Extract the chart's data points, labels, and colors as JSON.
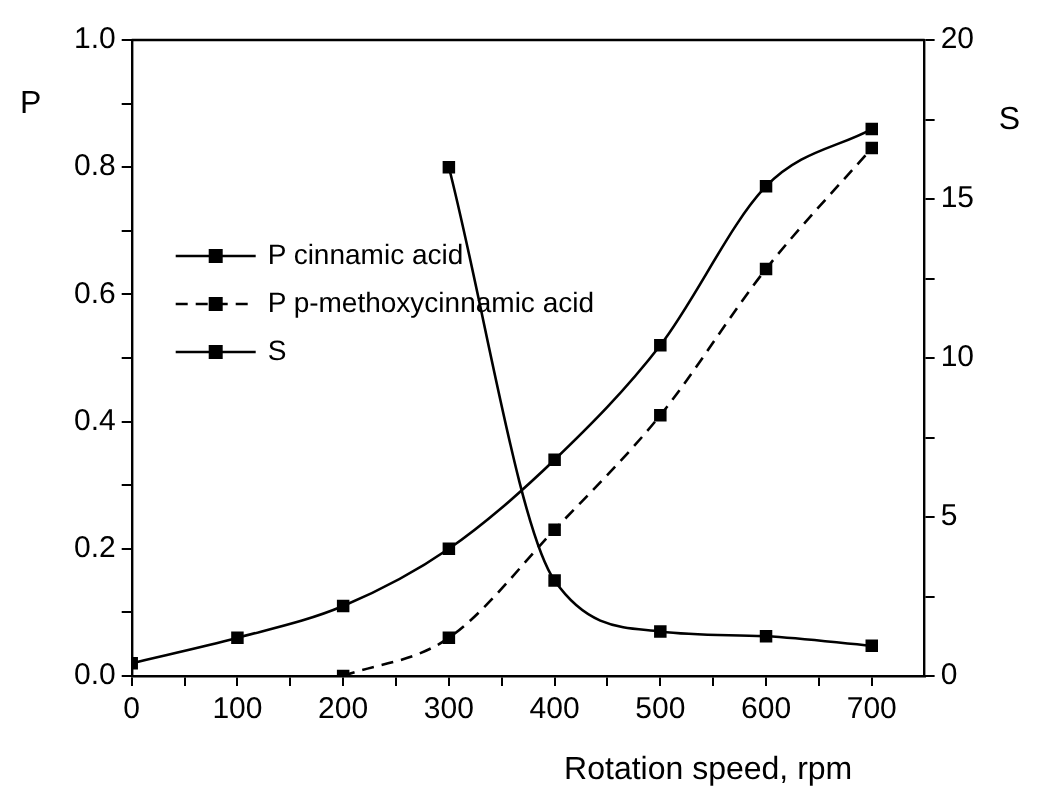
{
  "chart_data": {
    "type": "line",
    "xlabel": "Rotation speed, rpm",
    "ylabel": "P",
    "y2label": "S",
    "xlim": [
      0,
      750
    ],
    "xticks": [
      0,
      {
        "value": 50,
        "label": null
      },
      100,
      {
        "value": 150,
        "label": null
      },
      200,
      {
        "value": 250,
        "label": null
      },
      300,
      {
        "value": 350,
        "label": null
      },
      400,
      {
        "value": 450,
        "label": null
      },
      500,
      {
        "value": 550,
        "label": null
      },
      600,
      {
        "value": 650,
        "label": null
      },
      700
    ],
    "ylim": [
      0,
      1
    ],
    "yticks": [
      {
        "value": 0,
        "label": "0.0"
      },
      {
        "value": 0.1,
        "label": null
      },
      0.2,
      {
        "value": 0.3,
        "label": null
      },
      0.4,
      {
        "value": 0.5,
        "label": null
      },
      0.6,
      {
        "value": 0.7,
        "label": null
      },
      0.8,
      {
        "value": 0.9,
        "label": null
      },
      {
        "value": 1,
        "label": "1.0"
      }
    ],
    "y2lim": [
      0,
      20
    ],
    "y2ticks": [
      0,
      {
        "value": 2.5,
        "label": null
      },
      5,
      {
        "value": 7.5,
        "label": null
      },
      10,
      {
        "value": 12.5,
        "label": null
      },
      15,
      {
        "value": 17.5,
        "label": null
      },
      20
    ],
    "grid": false,
    "legend": "left",
    "marker": "square",
    "series": [
      {
        "name": "P cinnamic acid",
        "color": "#000000",
        "x": [
          0,
          100,
          200,
          300,
          400,
          500,
          600,
          700
        ],
        "values": [
          0.02,
          0.06,
          0.11,
          0.2,
          0.34,
          0.52,
          0.77,
          0.86
        ],
        "line_style": "solid"
      },
      {
        "name": "P p-methoxycinnamic acid",
        "color": "#000000",
        "x": [
          200,
          300,
          400,
          500,
          600,
          700
        ],
        "values": [
          0,
          0.06,
          0.23,
          0.41,
          0.64,
          0.83
        ],
        "line_style": "dashed"
      },
      {
        "name": "S",
        "color": "#000000",
        "axis": "y2",
        "x": [
          300,
          400,
          500,
          600,
          700
        ],
        "values": [
          16,
          3,
          1.4,
          1.25,
          0.95
        ],
        "line_style": "solid"
      }
    ]
  }
}
